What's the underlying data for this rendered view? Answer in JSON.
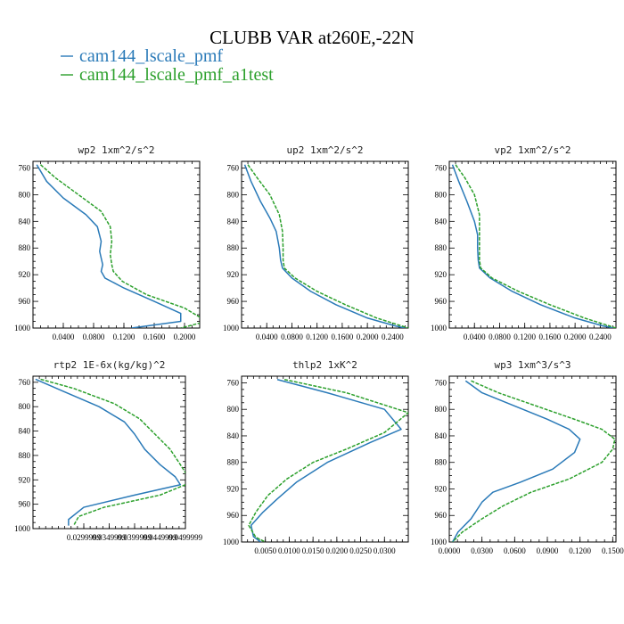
{
  "figure": {
    "title": "CLUBB VAR at260E,-22N",
    "legend": [
      {
        "label": "cam144_lscale_pmf",
        "color": "#2a7ab8",
        "dash": "solid"
      },
      {
        "label": "cam144_lscale_pmf_a1test",
        "color": "#2ca02c",
        "dash": "dashed"
      }
    ]
  },
  "chart_data": [
    {
      "type": "line",
      "title": "wp2  1xm^2/s^2",
      "xlim": [
        0.0,
        0.22
      ],
      "ylim": [
        1000,
        750
      ],
      "xticks": [
        0.04,
        0.08,
        0.12,
        0.16,
        0.2
      ],
      "xtick_labels": [
        "0.0400",
        "0.0800",
        "0.1200",
        "0.1600",
        "0.2000"
      ],
      "yticks": [
        760,
        800,
        840,
        880,
        920,
        960,
        1000
      ],
      "series": [
        {
          "name": "cam144_lscale_pmf",
          "points": [
            [
              0.005,
              755
            ],
            [
              0.018,
              780
            ],
            [
              0.04,
              805
            ],
            [
              0.07,
              830
            ],
            [
              0.085,
              848
            ],
            [
              0.09,
              870
            ],
            [
              0.088,
              885
            ],
            [
              0.092,
              905
            ],
            [
              0.09,
              915
            ],
            [
              0.095,
              925
            ],
            [
              0.12,
              940
            ],
            [
              0.16,
              960
            ],
            [
              0.195,
              978
            ],
            [
              0.195,
              990
            ],
            [
              0.13,
              1000
            ]
          ]
        },
        {
          "name": "cam144_lscale_pmf_a1test",
          "points": [
            [
              0.01,
              755
            ],
            [
              0.03,
              775
            ],
            [
              0.06,
              800
            ],
            [
              0.09,
              825
            ],
            [
              0.102,
              848
            ],
            [
              0.104,
              870
            ],
            [
              0.102,
              890
            ],
            [
              0.104,
              905
            ],
            [
              0.106,
              915
            ],
            [
              0.118,
              930
            ],
            [
              0.15,
              950
            ],
            [
              0.2,
              970
            ],
            [
              0.222,
              985
            ],
            [
              0.222,
              992
            ],
            [
              0.195,
              1000
            ]
          ]
        }
      ]
    },
    {
      "type": "line",
      "title": "up2  1xm^2/s^2",
      "xlim": [
        0.0,
        0.265
      ],
      "ylim": [
        1000,
        750
      ],
      "xticks": [
        0.04,
        0.08,
        0.12,
        0.16,
        0.2,
        0.24
      ],
      "xtick_labels": [
        "0.0400",
        "0.0800",
        "0.1200",
        "0.1600",
        "0.2000",
        "0.2400"
      ],
      "yticks": [
        760,
        800,
        840,
        880,
        920,
        960,
        1000
      ],
      "series": [
        {
          "name": "cam144_lscale_pmf",
          "points": [
            [
              0.005,
              755
            ],
            [
              0.015,
              780
            ],
            [
              0.03,
              810
            ],
            [
              0.045,
              835
            ],
            [
              0.055,
              855
            ],
            [
              0.06,
              880
            ],
            [
              0.062,
              898
            ],
            [
              0.065,
              910
            ],
            [
              0.08,
              925
            ],
            [
              0.11,
              945
            ],
            [
              0.15,
              965
            ],
            [
              0.2,
              985
            ],
            [
              0.245,
              997
            ],
            [
              0.26,
              1000
            ]
          ]
        },
        {
          "name": "cam144_lscale_pmf_a1test",
          "points": [
            [
              0.01,
              755
            ],
            [
              0.025,
              775
            ],
            [
              0.045,
              800
            ],
            [
              0.06,
              830
            ],
            [
              0.065,
              855
            ],
            [
              0.066,
              880
            ],
            [
              0.066,
              898
            ],
            [
              0.068,
              910
            ],
            [
              0.085,
              925
            ],
            [
              0.12,
              945
            ],
            [
              0.165,
              965
            ],
            [
              0.215,
              985
            ],
            [
              0.255,
              997
            ],
            [
              0.265,
              1000
            ]
          ]
        }
      ]
    },
    {
      "type": "line",
      "title": "vp2  1xm^2/s^2",
      "xlim": [
        0.0,
        0.265
      ],
      "ylim": [
        1000,
        750
      ],
      "xticks": [
        0.04,
        0.08,
        0.12,
        0.16,
        0.2,
        0.24
      ],
      "xtick_labels": [
        "0.0400",
        "0.0800",
        "0.1200",
        "0.1600",
        "0.2000",
        "0.2400"
      ],
      "yticks": [
        760,
        800,
        840,
        880,
        920,
        960,
        1000
      ],
      "series": [
        {
          "name": "cam144_lscale_pmf",
          "points": [
            [
              0.005,
              755
            ],
            [
              0.015,
              780
            ],
            [
              0.028,
              810
            ],
            [
              0.04,
              840
            ],
            [
              0.045,
              860
            ],
            [
              0.045,
              880
            ],
            [
              0.046,
              898
            ],
            [
              0.048,
              910
            ],
            [
              0.065,
              925
            ],
            [
              0.1,
              945
            ],
            [
              0.145,
              965
            ],
            [
              0.2,
              985
            ],
            [
              0.245,
              997
            ],
            [
              0.262,
              1000
            ]
          ]
        },
        {
          "name": "cam144_lscale_pmf_a1test",
          "points": [
            [
              0.01,
              755
            ],
            [
              0.025,
              775
            ],
            [
              0.04,
              800
            ],
            [
              0.048,
              830
            ],
            [
              0.048,
              860
            ],
            [
              0.048,
              880
            ],
            [
              0.048,
              898
            ],
            [
              0.05,
              910
            ],
            [
              0.068,
              925
            ],
            [
              0.11,
              945
            ],
            [
              0.16,
              965
            ],
            [
              0.215,
              985
            ],
            [
              0.255,
              997
            ],
            [
              0.265,
              1000
            ]
          ]
        }
      ]
    },
    {
      "type": "line",
      "title": "rtp2  1E-6x(kg/kg)^2",
      "xlim": [
        0.02,
        0.05
      ],
      "ylim": [
        1000,
        750
      ],
      "xticks": [
        0.03,
        0.035,
        0.04,
        0.045,
        0.05
      ],
      "xtick_labels": [
        "0.0299999",
        "0.0349999",
        "0.0399999",
        "0.0449999",
        "0.0499999"
      ],
      "yticks": [
        760,
        800,
        840,
        880,
        920,
        960,
        1000
      ],
      "series": [
        {
          "name": "cam144_lscale_pmf",
          "points": [
            [
              0.0205,
              755
            ],
            [
              0.026,
              775
            ],
            [
              0.033,
              800
            ],
            [
              0.038,
              825
            ],
            [
              0.04,
              845
            ],
            [
              0.042,
              870
            ],
            [
              0.045,
              895
            ],
            [
              0.048,
              915
            ],
            [
              0.049,
              928
            ],
            [
              0.04,
              945
            ],
            [
              0.03,
              965
            ],
            [
              0.027,
              985
            ],
            [
              0.027,
              995
            ]
          ]
        },
        {
          "name": "cam144_lscale_pmf_a1test",
          "points": [
            [
              0.0215,
              755
            ],
            [
              0.028,
              770
            ],
            [
              0.036,
              795
            ],
            [
              0.041,
              820
            ],
            [
              0.044,
              845
            ],
            [
              0.047,
              870
            ],
            [
              0.049,
              895
            ],
            [
              0.0505,
              915
            ],
            [
              0.05,
              928
            ],
            [
              0.045,
              945
            ],
            [
              0.034,
              965
            ],
            [
              0.029,
              980
            ],
            [
              0.028,
              995
            ]
          ]
        }
      ]
    },
    {
      "type": "line",
      "title": "thlp2  1xK^2",
      "xlim": [
        0.0,
        0.035
      ],
      "ylim": [
        1000,
        750
      ],
      "xticks": [
        0.005,
        0.01,
        0.015,
        0.02,
        0.025,
        0.03
      ],
      "xtick_labels": [
        "0.0050",
        "0.0100",
        "0.0150",
        "0.0200",
        "0.0250",
        "0.0300"
      ],
      "yticks": [
        760,
        800,
        840,
        880,
        920,
        960,
        1000
      ],
      "series": [
        {
          "name": "cam144_lscale_pmf",
          "points": [
            [
              0.0075,
              755
            ],
            [
              0.018,
              775
            ],
            [
              0.03,
              800
            ],
            [
              0.0335,
              830
            ],
            [
              0.027,
              850
            ],
            [
              0.018,
              880
            ],
            [
              0.0115,
              910
            ],
            [
              0.0075,
              935
            ],
            [
              0.0045,
              955
            ],
            [
              0.002,
              975
            ],
            [
              0.0025,
              992
            ],
            [
              0.004,
              1000
            ]
          ]
        },
        {
          "name": "cam144_lscale_pmf_a1test",
          "points": [
            [
              0.009,
              755
            ],
            [
              0.022,
              775
            ],
            [
              0.035,
              805
            ],
            [
              0.03,
              835
            ],
            [
              0.022,
              860
            ],
            [
              0.015,
              880
            ],
            [
              0.0095,
              905
            ],
            [
              0.0055,
              930
            ],
            [
              0.003,
              955
            ],
            [
              0.0015,
              975
            ],
            [
              0.003,
              993
            ],
            [
              0.005,
              1000
            ]
          ]
        }
      ]
    },
    {
      "type": "line",
      "title": "wp3  1xm^3/s^3",
      "xlim": [
        0.0,
        0.153
      ],
      "ylim": [
        1000,
        750
      ],
      "xticks": [
        0.0,
        0.03,
        0.06,
        0.09,
        0.12,
        0.15
      ],
      "xtick_labels": [
        "0.0000",
        "0.0300",
        "0.0600",
        "0.0900",
        "0.1200",
        "0.1500"
      ],
      "yticks": [
        760,
        800,
        840,
        880,
        920,
        960,
        1000
      ],
      "series": [
        {
          "name": "cam144_lscale_pmf",
          "points": [
            [
              0.015,
              757
            ],
            [
              0.03,
              775
            ],
            [
              0.06,
              795
            ],
            [
              0.09,
              815
            ],
            [
              0.11,
              830
            ],
            [
              0.12,
              845
            ],
            [
              0.115,
              865
            ],
            [
              0.095,
              890
            ],
            [
              0.065,
              910
            ],
            [
              0.04,
              925
            ],
            [
              0.03,
              940
            ],
            [
              0.02,
              965
            ],
            [
              0.008,
              985
            ],
            [
              0.003,
              1000
            ]
          ]
        },
        {
          "name": "cam144_lscale_pmf_a1test",
          "points": [
            [
              0.02,
              757
            ],
            [
              0.045,
              775
            ],
            [
              0.08,
              795
            ],
            [
              0.115,
              815
            ],
            [
              0.14,
              830
            ],
            [
              0.152,
              845
            ],
            [
              0.15,
              860
            ],
            [
              0.14,
              880
            ],
            [
              0.11,
              905
            ],
            [
              0.075,
              925
            ],
            [
              0.05,
              945
            ],
            [
              0.03,
              965
            ],
            [
              0.012,
              985
            ],
            [
              0.003,
              1000
            ]
          ]
        }
      ]
    }
  ]
}
